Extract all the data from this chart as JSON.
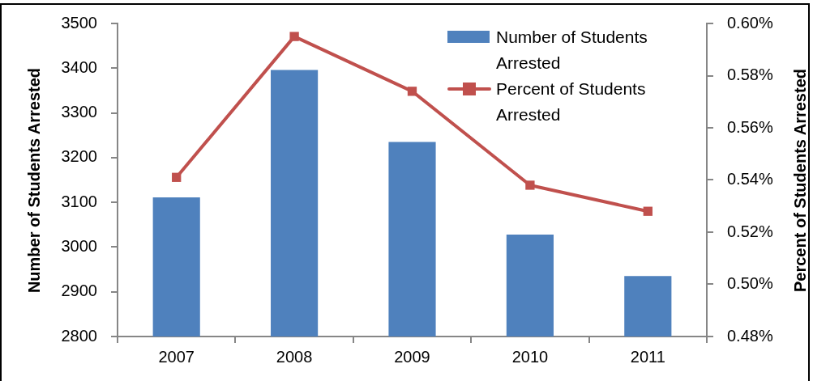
{
  "chart_data": {
    "type": "bar",
    "categories": [
      "2007",
      "2008",
      "2009",
      "2010",
      "2011"
    ],
    "ylabel": "Number of Students Arrested",
    "y2label": "Percent of Students Arrested",
    "series": [
      {
        "name": "Number of Students Arrested",
        "color": "#4f81bd",
        "values": [
          3111,
          3396,
          3235,
          3028,
          2935
        ]
      },
      {
        "name": "Percent of Students Arrested",
        "type": "line",
        "axis": "y2",
        "color": "#c0504d",
        "values": [
          0.541,
          0.595,
          0.574,
          0.538,
          0.528
        ]
      }
    ],
    "ylim": [
      2800,
      3500
    ],
    "yticks": [
      2800,
      2900,
      3000,
      3100,
      3200,
      3300,
      3400,
      3500
    ],
    "y2lim": [
      0.48,
      0.6
    ],
    "y2ticks": [
      {
        "value": 0.48,
        "label": "0.48%"
      },
      {
        "value": 0.5,
        "label": "0.50%"
      },
      {
        "value": 0.52,
        "label": "0.52%"
      },
      {
        "value": 0.54,
        "label": "0.54%"
      },
      {
        "value": 0.56,
        "label": "0.56%"
      },
      {
        "value": 0.58,
        "label": "0.58%"
      },
      {
        "value": 0.6,
        "label": "0.60%"
      }
    ],
    "legend": "top right",
    "marker": "square"
  }
}
